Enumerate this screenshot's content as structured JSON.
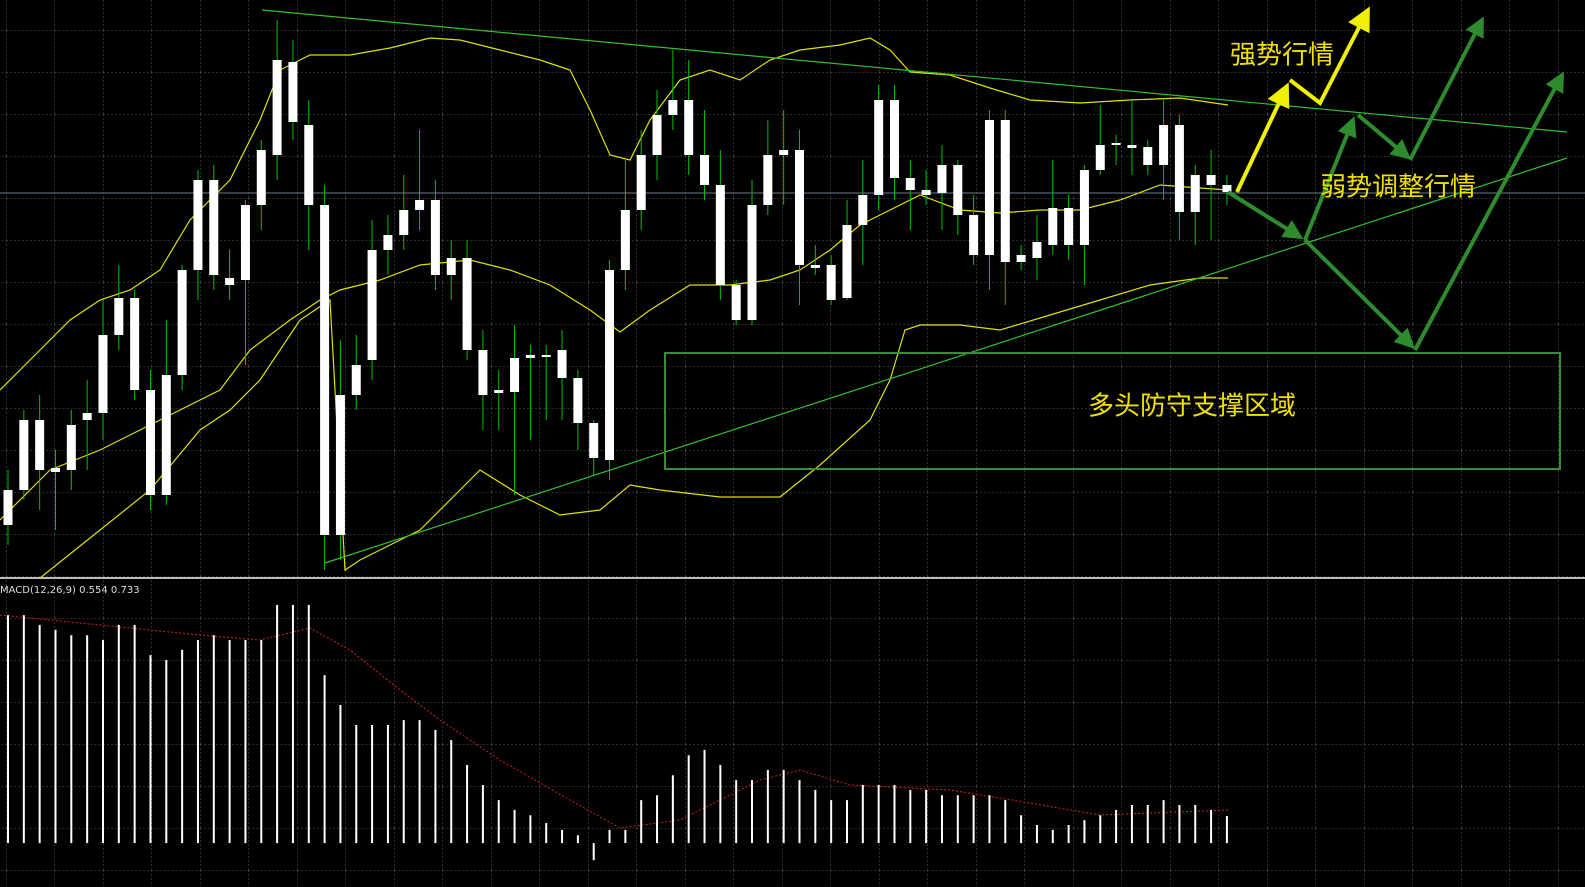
{
  "chart_data": [
    {
      "type": "candlestick",
      "open": [
        55,
        90,
        110,
        108,
        110,
        160,
        167,
        245,
        282,
        190,
        85,
        205,
        310,
        400,
        302,
        300,
        375,
        425,
        518,
        455,
        375,
        45,
        185,
        220,
        330,
        345,
        370,
        380,
        305,
        322,
        230,
        187,
        188,
        222,
        224,
        230,
        202,
        157,
        120,
        310,
        370,
        425,
        465,
        480,
        425,
        395,
        295,
        260,
        375,
        425,
        430,
        315,
        315,
        282,
        355,
        385,
        480,
        402,
        390,
        387,
        415,
        365,
        325,
        460,
        318,
        322,
        335,
        372,
        335,
        410,
        435,
        435,
        433,
        415,
        455,
        368,
        405,
        395
      ],
      "high": [
        110,
        170,
        185,
        130,
        170,
        200,
        280,
        315,
        290,
        210,
        260,
        315,
        410,
        415,
        330,
        380,
        440,
        560,
        540,
        480,
        395,
        240,
        245,
        360,
        365,
        405,
        450,
        400,
        340,
        340,
        250,
        210,
        255,
        235,
        235,
        250,
        210,
        160,
        320,
        420,
        450,
        490,
        530,
        520,
        470,
        430,
        300,
        400,
        460,
        470,
        450,
        335,
        325,
        380,
        420,
        495,
        495,
        420,
        410,
        435,
        420,
        385,
        470,
        470,
        335,
        365,
        420,
        385,
        415,
        475,
        445,
        480,
        440,
        480,
        465,
        415,
        430,
        405
      ],
      "low": [
        35,
        80,
        70,
        50,
        90,
        110,
        140,
        230,
        180,
        70,
        75,
        190,
        280,
        290,
        280,
        215,
        350,
        400,
        440,
        330,
        10,
        20,
        170,
        200,
        305,
        330,
        350,
        290,
        280,
        220,
        150,
        150,
        85,
        140,
        160,
        160,
        130,
        105,
        100,
        290,
        350,
        400,
        450,
        405,
        380,
        280,
        255,
        255,
        365,
        375,
        275,
        305,
        275,
        280,
        315,
        370,
        380,
        350,
        375,
        350,
        345,
        315,
        290,
        275,
        310,
        300,
        325,
        320,
        295,
        405,
        415,
        405,
        405,
        380,
        340,
        335,
        340,
        375
      ],
      "close": [
        90,
        160,
        160,
        112,
        155,
        167,
        245,
        282,
        190,
        85,
        205,
        310,
        400,
        305,
        295,
        375,
        430,
        520,
        458,
        375,
        45,
        185,
        215,
        330,
        345,
        370,
        380,
        305,
        322,
        230,
        185,
        190,
        222,
        225,
        225,
        202,
        157,
        122,
        310,
        370,
        425,
        465,
        480,
        425,
        395,
        295,
        260,
        375,
        425,
        430,
        315,
        312,
        280,
        355,
        385,
        480,
        402,
        390,
        385,
        415,
        365,
        325,
        460,
        318,
        325,
        338,
        372,
        335,
        410,
        435,
        437,
        432,
        415,
        455,
        368,
        405,
        395,
        388
      ],
      "body_color": "#ffffff",
      "wick_color": "#00c000",
      "ylim": [
        0,
        580
      ],
      "annotations": [
        "强势行情",
        "弱势调整行情",
        "多头防守支撑区域"
      ]
    },
    {
      "type": "bar",
      "title": "MACD(12,26,9) 0.554 0.733",
      "values": [
        4.67,
        4.67,
        4.47,
        4.37,
        4.26,
        4.26,
        4.16,
        4.47,
        4.47,
        3.85,
        3.75,
        3.96,
        4.16,
        4.26,
        4.16,
        4.16,
        4.16,
        4.88,
        4.88,
        4.88,
        3.44,
        2.83,
        2.42,
        2.42,
        2.42,
        2.52,
        2.52,
        2.32,
        2.11,
        1.6,
        1.19,
        0.88,
        0.68,
        0.57,
        0.41,
        0.27,
        0.16,
        -0.35,
        0.27,
        0.27,
        0.88,
        0.98,
        1.39,
        1.8,
        1.91,
        1.6,
        1.29,
        1.29,
        1.5,
        1.5,
        1.29,
        1.09,
        0.88,
        0.88,
        1.19,
        1.19,
        1.19,
        1.09,
        1.09,
        0.98,
        0.98,
        0.98,
        0.98,
        0.88,
        0.57,
        0.37,
        0.27,
        0.37,
        0.47,
        0.57,
        0.68,
        0.78,
        0.78,
        0.88,
        0.78,
        0.78,
        0.68,
        0.554
      ],
      "color": "#ffffff",
      "ylim": [
        -0.9,
        5.35
      ]
    }
  ]
}
